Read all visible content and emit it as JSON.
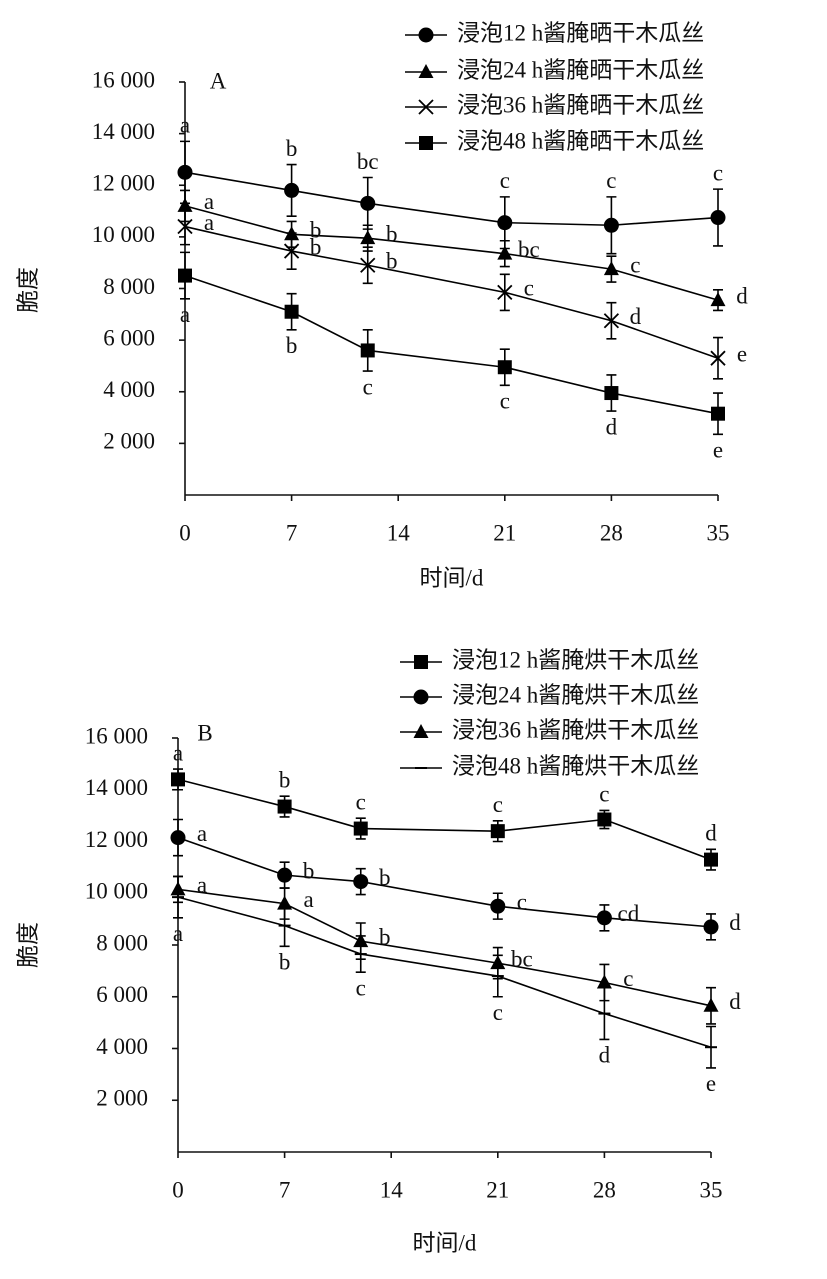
{
  "chart_data": [
    {
      "type": "line",
      "panel": "A",
      "xlabel": "时间/d",
      "ylabel": "脆度",
      "x": [
        0,
        7,
        12,
        21,
        28,
        35
      ],
      "xlim": [
        0,
        35
      ],
      "xticks": [
        0,
        7,
        14,
        21,
        28,
        35
      ],
      "ylim": [
        0,
        16000
      ],
      "yticks": [
        {
          "value": 2000,
          "label": "2 000"
        },
        {
          "value": 4000,
          "label": "4 000"
        },
        {
          "value": 6000,
          "label": "6 000"
        },
        {
          "value": 8000,
          "label": "8 000"
        },
        {
          "value": 10000,
          "label": "10 000"
        },
        {
          "value": 12000,
          "label": "12 000"
        },
        {
          "value": 14000,
          "label": "14 000"
        },
        {
          "value": 16000,
          "label": "16 000"
        }
      ],
      "series": [
        {
          "name": "浸泡12 h酱腌晒干木瓜丝",
          "color": "#000000",
          "marker": "circle",
          "values": [
            12500,
            11800,
            11300,
            10550,
            10450,
            10750
          ],
          "errors": [
            1200,
            1000,
            1000,
            1000,
            1100,
            1100
          ],
          "labels": [
            "a",
            "b",
            "bc",
            "c",
            "c",
            "c"
          ]
        },
        {
          "name": "浸泡24 h酱腌晒干木瓜丝",
          "color": "#000000",
          "marker": "triangle",
          "values": [
            11200,
            10100,
            9950,
            9350,
            8750,
            7550
          ],
          "errors": [
            600,
            500,
            500,
            500,
            500,
            400
          ],
          "labels": [
            "a",
            "b",
            "b",
            "bc",
            "c",
            "d"
          ]
        },
        {
          "name": "浸泡36 h酱腌晒干木瓜丝",
          "color": "#000000",
          "marker": "x",
          "values": [
            10400,
            9450,
            8900,
            7850,
            6750,
            5300
          ],
          "errors": [
            700,
            700,
            700,
            700,
            700,
            800
          ],
          "labels": [
            "a",
            "b",
            "b",
            "c",
            "d",
            "e"
          ]
        },
        {
          "name": "浸泡48 h酱腌晒干木瓜丝",
          "color": "#000000",
          "marker": "square",
          "values": [
            8500,
            7100,
            5600,
            4950,
            3950,
            3150
          ],
          "errors": [
            900,
            700,
            800,
            700,
            700,
            800
          ],
          "labels": [
            "a",
            "b",
            "c",
            "c",
            "d",
            "e"
          ]
        }
      ]
    },
    {
      "type": "line",
      "panel": "B",
      "xlabel": "时间/d",
      "ylabel": "脆度",
      "x": [
        0,
        7,
        12,
        21,
        28,
        35
      ],
      "xlim": [
        0,
        35
      ],
      "xticks": [
        0,
        7,
        14,
        21,
        28,
        35
      ],
      "ylim": [
        0,
        16000
      ],
      "yticks": [
        {
          "value": 2000,
          "label": "2 000"
        },
        {
          "value": 4000,
          "label": "4 000"
        },
        {
          "value": 6000,
          "label": "6 000"
        },
        {
          "value": 8000,
          "label": "8 000"
        },
        {
          "value": 10000,
          "label": "10 000"
        },
        {
          "value": 12000,
          "label": "12 000"
        },
        {
          "value": 14000,
          "label": "14 000"
        },
        {
          "value": 16000,
          "label": "16 000"
        }
      ],
      "series": [
        {
          "name": "浸泡12 h酱腌烘干木瓜丝",
          "color": "#000000",
          "marker": "square",
          "values": [
            14400,
            13350,
            12500,
            12400,
            12850,
            11300
          ],
          "errors": [
            400,
            400,
            400,
            400,
            350,
            400
          ],
          "labels": [
            "a",
            "b",
            "c",
            "c",
            "c",
            "d"
          ]
        },
        {
          "name": "浸泡24 h酱腌烘干木瓜丝",
          "color": "#000000",
          "marker": "circle",
          "values": [
            12150,
            10700,
            10450,
            9500,
            9050,
            8700
          ],
          "errors": [
            700,
            500,
            500,
            500,
            500,
            500
          ],
          "labels": [
            "a",
            "b",
            "b",
            "c",
            "cd",
            "d"
          ]
        },
        {
          "name": "浸泡36 h酱腌烘干木瓜丝",
          "color": "#000000",
          "marker": "triangle",
          "values": [
            10150,
            9600,
            8150,
            7300,
            6550,
            5650
          ],
          "errors": [
            500,
            600,
            700,
            600,
            700,
            700
          ],
          "labels": [
            "a",
            "a",
            "b",
            "bc",
            "c",
            "d"
          ]
        },
        {
          "name": "浸泡48 h酱腌烘干木瓜丝",
          "color": "#000000",
          "marker": "dash",
          "values": [
            9850,
            8750,
            7650,
            6800,
            5350,
            4050
          ],
          "errors": [
            800,
            800,
            700,
            800,
            1000,
            800
          ],
          "labels": [
            "a",
            "b",
            "c",
            "c",
            "d",
            "e"
          ]
        }
      ]
    }
  ]
}
